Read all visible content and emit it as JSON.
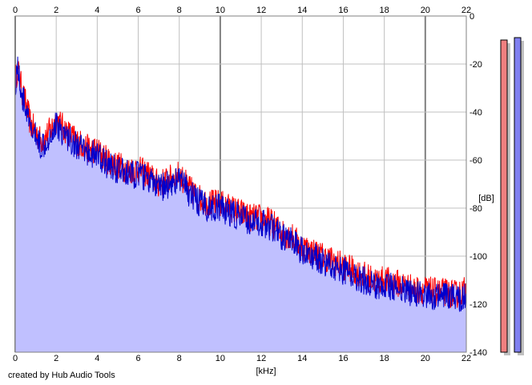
{
  "footer": {
    "credit": "created by Hub Audio Tools"
  },
  "chart_data": {
    "type": "area",
    "xlabel": "[kHz]",
    "ylabel": "[dB]",
    "xlim": [
      0,
      22
    ],
    "ylim": [
      -140,
      0
    ],
    "x_ticks": [
      0,
      2,
      4,
      6,
      8,
      10,
      12,
      14,
      16,
      18,
      20,
      22
    ],
    "y_ticks": [
      0,
      -20,
      -40,
      -60,
      -80,
      -100,
      -120,
      -140
    ],
    "y_tick_labels": [
      "0",
      "-20",
      "-40",
      "-60",
      "-80",
      "-100",
      "-120",
      "-140"
    ],
    "grid": true,
    "x_axis_top": true,
    "colors": {
      "fill": "#c0c0ff",
      "left_channel": "#ff0000",
      "right_channel": "#0000cc",
      "grid": "#c0c0c0",
      "major_grid": "#808080",
      "meter_left": "#f08080",
      "meter_right": "#8080f0"
    },
    "series": [
      {
        "color": "#ff0000",
        "x": [
          0,
          0.1,
          0.2,
          0.35,
          0.5,
          0.75,
          1.0,
          1.25,
          1.5,
          1.75,
          2.0,
          2.5,
          3.0,
          3.5,
          4.0,
          4.5,
          5.0,
          5.5,
          6.0,
          6.5,
          7.0,
          7.5,
          8.0,
          8.5,
          9.0,
          9.5,
          10.0,
          10.5,
          11.0,
          11.5,
          12.0,
          12.5,
          13.0,
          13.5,
          14.0,
          14.5,
          15.0,
          15.5,
          16.0,
          16.5,
          17.0,
          17.5,
          18.0,
          18.5,
          19.0,
          19.5,
          20.0,
          20.5,
          21.0,
          21.5,
          22.0
        ],
        "values": [
          -28,
          -22,
          -25,
          -32,
          -36,
          -45,
          -48,
          -52,
          -50,
          -47,
          -43,
          -48,
          -52,
          -55,
          -56,
          -60,
          -62,
          -64,
          -64,
          -66,
          -70,
          -68,
          -66,
          -72,
          -76,
          -78,
          -78,
          -80,
          -82,
          -84,
          -84,
          -86,
          -90,
          -92,
          -96,
          -98,
          -100,
          -102,
          -104,
          -106,
          -108,
          -110,
          -110,
          -111,
          -112,
          -114,
          -114,
          -115,
          -115,
          -116,
          -114
        ]
      },
      {
        "color": "#0000cc",
        "x": [
          0,
          0.1,
          0.2,
          0.35,
          0.5,
          0.75,
          1.0,
          1.25,
          1.5,
          1.75,
          2.0,
          2.5,
          3.0,
          3.5,
          4.0,
          4.5,
          5.0,
          5.5,
          6.0,
          6.5,
          7.0,
          7.5,
          8.0,
          8.5,
          9.0,
          9.5,
          10.0,
          10.5,
          11.0,
          11.5,
          12.0,
          12.5,
          13.0,
          13.5,
          14.0,
          14.5,
          15.0,
          15.5,
          16.0,
          16.5,
          17.0,
          17.5,
          18.0,
          18.5,
          19.0,
          19.5,
          20.0,
          20.5,
          21.0,
          21.5,
          22.0
        ],
        "values": [
          -30,
          -20,
          -26,
          -34,
          -38,
          -48,
          -50,
          -54,
          -52,
          -49,
          -45,
          -50,
          -54,
          -57,
          -58,
          -62,
          -64,
          -66,
          -66,
          -68,
          -72,
          -70,
          -68,
          -74,
          -78,
          -80,
          -80,
          -82,
          -84,
          -86,
          -86,
          -88,
          -92,
          -94,
          -98,
          -100,
          -102,
          -104,
          -106,
          -108,
          -110,
          -112,
          -112,
          -113,
          -114,
          -116,
          -116,
          -117,
          -117,
          -118,
          -116
        ]
      }
    ],
    "meters": {
      "left": -10,
      "right": -9
    }
  }
}
